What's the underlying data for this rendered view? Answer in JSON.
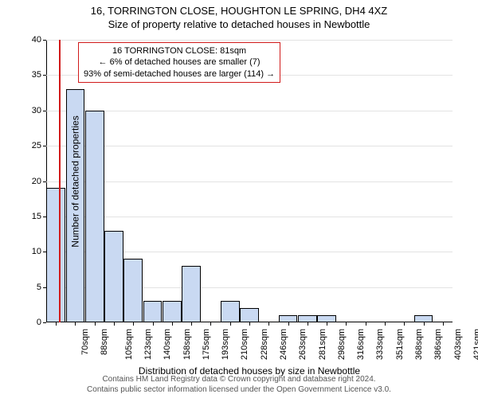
{
  "titles": {
    "line1": "16, TORRINGTON CLOSE, HOUGHTON LE SPRING, DH4 4XZ",
    "line2": "Size of property relative to detached houses in Newbottle"
  },
  "chart": {
    "type": "histogram",
    "ylabel": "Number of detached properties",
    "xlabel": "Distribution of detached houses by size in Newbottle",
    "ylim": [
      0,
      40
    ],
    "ytick_step": 5,
    "bar_fill": "#c9d9f2",
    "bar_stroke": "#000000",
    "grid_color": "#e3e3e3",
    "axis_color": "#000000",
    "background": "#ffffff",
    "label_fontsize": 12,
    "tick_fontsize": 11,
    "categories": [
      "70sqm",
      "88sqm",
      "105sqm",
      "123sqm",
      "140sqm",
      "158sqm",
      "175sqm",
      "193sqm",
      "210sqm",
      "228sqm",
      "246sqm",
      "263sqm",
      "281sqm",
      "298sqm",
      "316sqm",
      "333sqm",
      "351sqm",
      "368sqm",
      "386sqm",
      "403sqm",
      "421sqm"
    ],
    "values": [
      19,
      33,
      30,
      13,
      9,
      3,
      3,
      8,
      0,
      3,
      2,
      0,
      1,
      1,
      1,
      0,
      0,
      0,
      0,
      1,
      0
    ],
    "reference_line": {
      "x_label": "81sqm",
      "fractional_position": 0.031,
      "color": "#d11a1a",
      "width": 2
    },
    "annotation": {
      "border_color": "#d11a1a",
      "background": "#ffffff",
      "lines": [
        "16 TORRINGTON CLOSE: 81sqm",
        "← 6% of detached houses are smaller (7)",
        "93% of semi-detached houses are larger (114) →"
      ],
      "fontsize": 11
    }
  },
  "footer": {
    "line1": "Contains HM Land Registry data © Crown copyright and database right 2024.",
    "line2": "Contains public sector information licensed under the Open Government Licence v3.0."
  }
}
